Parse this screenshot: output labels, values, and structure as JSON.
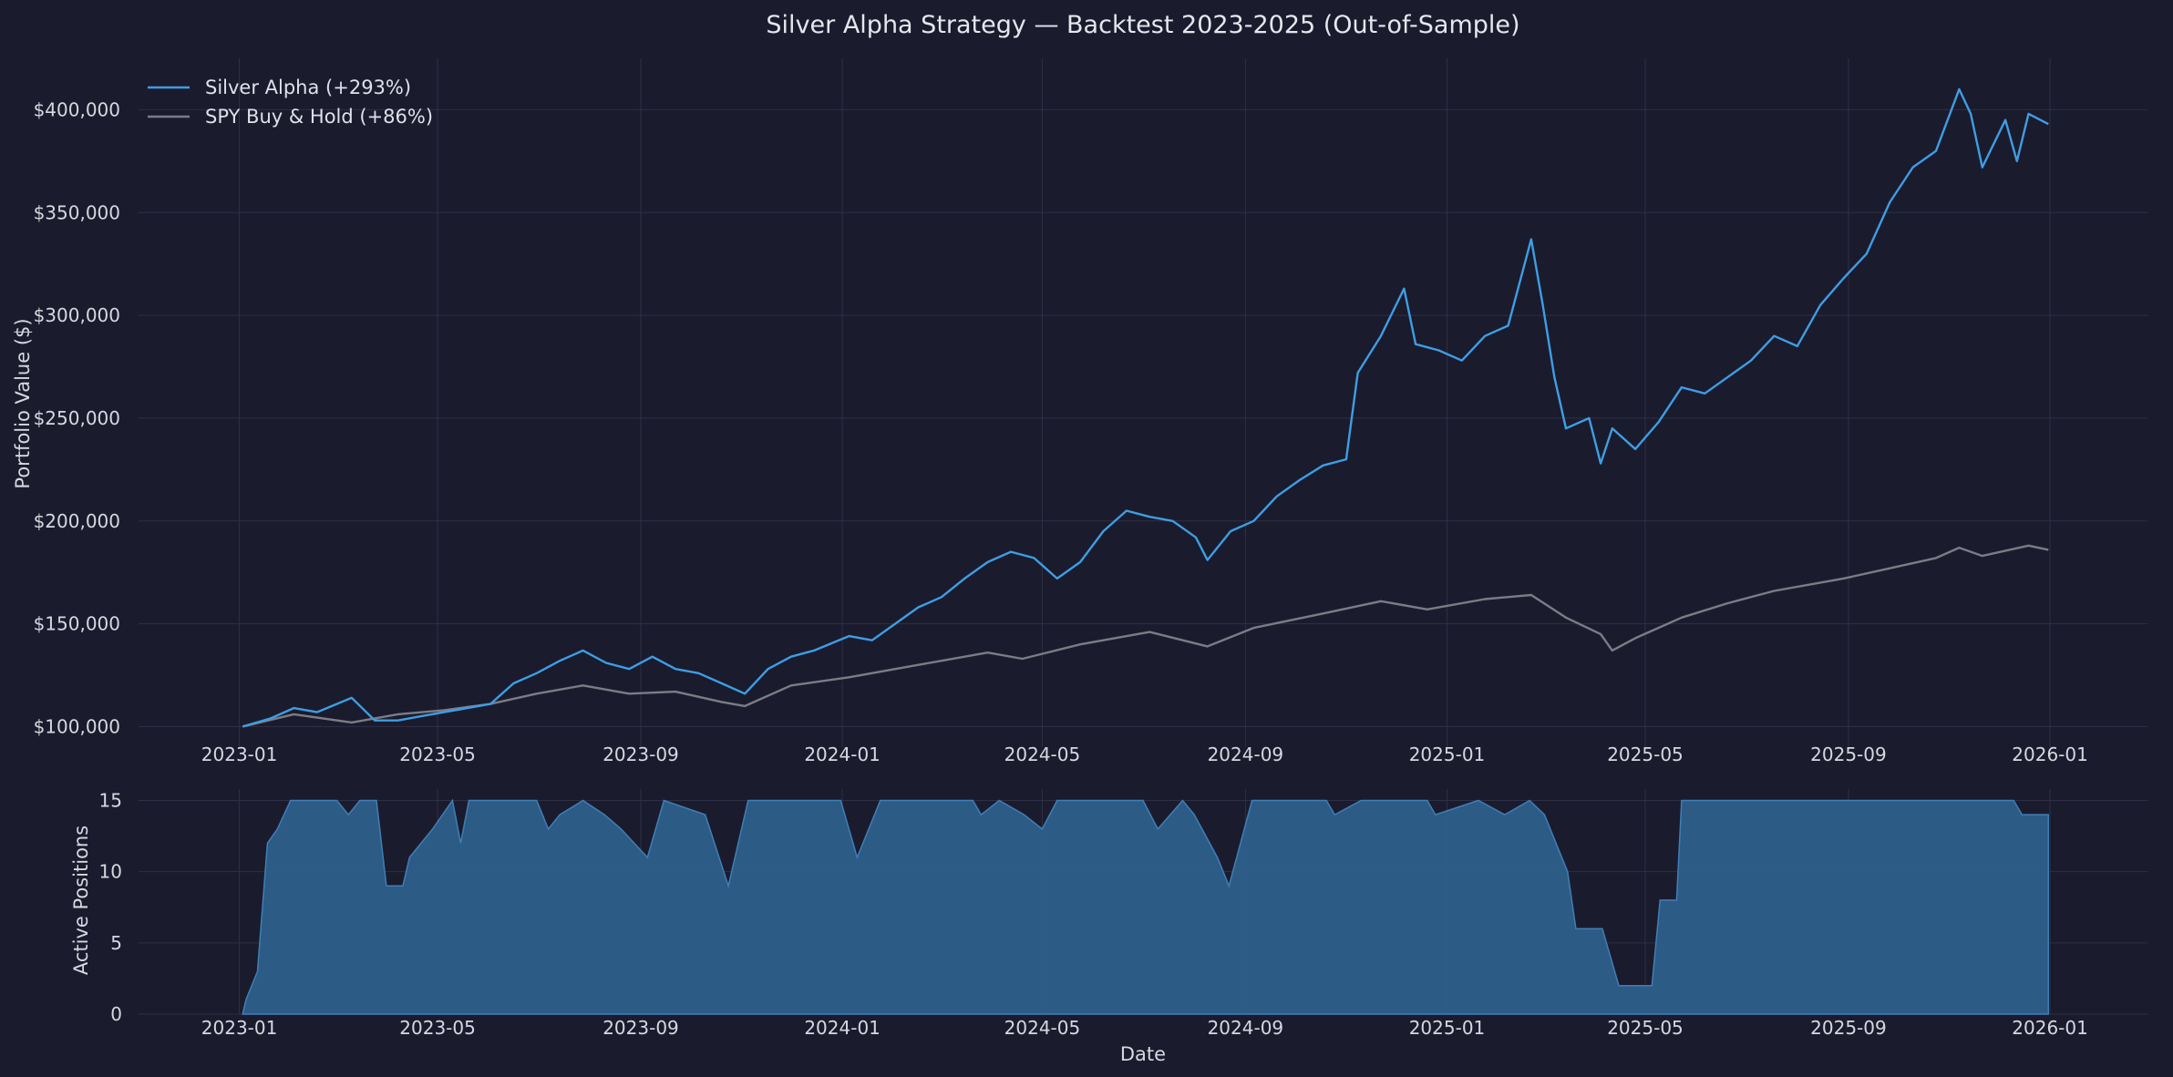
{
  "chart_data": [
    {
      "type": "line",
      "title": "Silver Alpha Strategy — Backtest 2023-2025 (Out-of-Sample)",
      "xlabel": "",
      "ylabel": "Portfolio Value ($)",
      "xlim": [
        "2022-11-01",
        "2026-03-01"
      ],
      "ylim": [
        90000,
        425000
      ],
      "x_ticks": [
        "2023-01",
        "2023-05",
        "2023-09",
        "2024-01",
        "2024-05",
        "2024-09",
        "2025-01",
        "2025-05",
        "2025-09",
        "2026-01"
      ],
      "y_ticks": [
        100000,
        150000,
        200000,
        250000,
        300000,
        350000,
        400000
      ],
      "y_tick_labels": [
        "$100,000",
        "$150,000",
        "$200,000",
        "$250,000",
        "$300,000",
        "$350,000",
        "$400,000"
      ],
      "grid": true,
      "legend_position": "top-left",
      "series": [
        {
          "name": "Silver Alpha (+293%)",
          "color": "#3d9ee3",
          "points": [
            [
              "2023-01-03",
              100000
            ],
            [
              "2023-01-20",
              104000
            ],
            [
              "2023-02-03",
              109000
            ],
            [
              "2023-02-17",
              107000
            ],
            [
              "2023-03-01",
              111000
            ],
            [
              "2023-03-10",
              114000
            ],
            [
              "2023-03-24",
              103000
            ],
            [
              "2023-04-07",
              103000
            ],
            [
              "2023-04-21",
              105000
            ],
            [
              "2023-05-05",
              107000
            ],
            [
              "2023-05-19",
              109000
            ],
            [
              "2023-06-02",
              111000
            ],
            [
              "2023-06-16",
              121000
            ],
            [
              "2023-06-30",
              126000
            ],
            [
              "2023-07-14",
              132000
            ],
            [
              "2023-07-28",
              137000
            ],
            [
              "2023-08-11",
              131000
            ],
            [
              "2023-08-25",
              128000
            ],
            [
              "2023-09-08",
              134000
            ],
            [
              "2023-09-22",
              128000
            ],
            [
              "2023-10-06",
              126000
            ],
            [
              "2023-10-20",
              121000
            ],
            [
              "2023-11-03",
              116000
            ],
            [
              "2023-11-17",
              128000
            ],
            [
              "2023-12-01",
              134000
            ],
            [
              "2023-12-15",
              137000
            ],
            [
              "2024-01-05",
              144000
            ],
            [
              "2024-01-19",
              142000
            ],
            [
              "2024-02-02",
              150000
            ],
            [
              "2024-02-16",
              158000
            ],
            [
              "2024-03-01",
              163000
            ],
            [
              "2024-03-15",
              172000
            ],
            [
              "2024-03-29",
              180000
            ],
            [
              "2024-04-12",
              185000
            ],
            [
              "2024-04-26",
              182000
            ],
            [
              "2024-05-10",
              172000
            ],
            [
              "2024-05-24",
              180000
            ],
            [
              "2024-06-07",
              195000
            ],
            [
              "2024-06-21",
              205000
            ],
            [
              "2024-07-05",
              202000
            ],
            [
              "2024-07-19",
              200000
            ],
            [
              "2024-08-02",
              192000
            ],
            [
              "2024-08-09",
              181000
            ],
            [
              "2024-08-23",
              195000
            ],
            [
              "2024-09-06",
              200000
            ],
            [
              "2024-09-20",
              212000
            ],
            [
              "2024-10-04",
              220000
            ],
            [
              "2024-10-18",
              227000
            ],
            [
              "2024-11-01",
              230000
            ],
            [
              "2024-11-08",
              272000
            ],
            [
              "2024-11-22",
              290000
            ],
            [
              "2024-12-06",
              313000
            ],
            [
              "2024-12-13",
              286000
            ],
            [
              "2024-12-27",
              283000
            ],
            [
              "2025-01-10",
              278000
            ],
            [
              "2025-01-24",
              290000
            ],
            [
              "2025-02-07",
              295000
            ],
            [
              "2025-02-21",
              337000
            ],
            [
              "2025-02-28",
              305000
            ],
            [
              "2025-03-07",
              270000
            ],
            [
              "2025-03-14",
              245000
            ],
            [
              "2025-03-28",
              250000
            ],
            [
              "2025-04-04",
              228000
            ],
            [
              "2025-04-11",
              245000
            ],
            [
              "2025-04-25",
              235000
            ],
            [
              "2025-05-09",
              248000
            ],
            [
              "2025-05-23",
              265000
            ],
            [
              "2025-06-06",
              262000
            ],
            [
              "2025-06-20",
              270000
            ],
            [
              "2025-07-04",
              278000
            ],
            [
              "2025-07-18",
              290000
            ],
            [
              "2025-08-01",
              285000
            ],
            [
              "2025-08-15",
              305000
            ],
            [
              "2025-08-29",
              318000
            ],
            [
              "2025-09-12",
              330000
            ],
            [
              "2025-09-26",
              355000
            ],
            [
              "2025-10-10",
              372000
            ],
            [
              "2025-10-24",
              380000
            ],
            [
              "2025-11-07",
              410000
            ],
            [
              "2025-11-14",
              398000
            ],
            [
              "2025-11-21",
              372000
            ],
            [
              "2025-12-05",
              395000
            ],
            [
              "2025-12-12",
              375000
            ],
            [
              "2025-12-19",
              398000
            ],
            [
              "2025-12-31",
              393000
            ]
          ]
        },
        {
          "name": "SPY Buy & Hold (+86%)",
          "color": "#7c7c85",
          "points": [
            [
              "2023-01-03",
              100000
            ],
            [
              "2023-02-03",
              106000
            ],
            [
              "2023-03-10",
              102000
            ],
            [
              "2023-04-07",
              106000
            ],
            [
              "2023-05-05",
              108000
            ],
            [
              "2023-06-02",
              111000
            ],
            [
              "2023-06-30",
              116000
            ],
            [
              "2023-07-28",
              120000
            ],
            [
              "2023-08-25",
              116000
            ],
            [
              "2023-09-22",
              117000
            ],
            [
              "2023-10-20",
              112000
            ],
            [
              "2023-11-03",
              110000
            ],
            [
              "2023-12-01",
              120000
            ],
            [
              "2024-01-05",
              124000
            ],
            [
              "2024-02-16",
              130000
            ],
            [
              "2024-03-29",
              136000
            ],
            [
              "2024-04-19",
              133000
            ],
            [
              "2024-05-24",
              140000
            ],
            [
              "2024-07-05",
              146000
            ],
            [
              "2024-08-09",
              139000
            ],
            [
              "2024-09-06",
              148000
            ],
            [
              "2024-10-18",
              155000
            ],
            [
              "2024-11-22",
              161000
            ],
            [
              "2024-12-20",
              157000
            ],
            [
              "2025-01-24",
              162000
            ],
            [
              "2025-02-21",
              164000
            ],
            [
              "2025-03-14",
              153000
            ],
            [
              "2025-04-04",
              145000
            ],
            [
              "2025-04-11",
              137000
            ],
            [
              "2025-04-25",
              143000
            ],
            [
              "2025-05-23",
              153000
            ],
            [
              "2025-06-20",
              160000
            ],
            [
              "2025-07-18",
              166000
            ],
            [
              "2025-08-29",
              172000
            ],
            [
              "2025-09-26",
              177000
            ],
            [
              "2025-10-24",
              182000
            ],
            [
              "2025-11-07",
              187000
            ],
            [
              "2025-11-21",
              183000
            ],
            [
              "2025-12-19",
              188000
            ],
            [
              "2025-12-31",
              186000
            ]
          ]
        }
      ]
    },
    {
      "type": "area",
      "title": "",
      "xlabel": "Date",
      "ylabel": "Active Positions",
      "xlim": [
        "2022-11-01",
        "2026-03-01"
      ],
      "ylim": [
        0,
        15.8
      ],
      "x_ticks": [
        "2023-01",
        "2023-05",
        "2023-09",
        "2024-01",
        "2024-05",
        "2024-09",
        "2025-01",
        "2025-05",
        "2025-09",
        "2026-01"
      ],
      "y_ticks": [
        0,
        5,
        10,
        15
      ],
      "grid": true,
      "series": [
        {
          "name": "",
          "color": "#2d5f8b",
          "points": [
            [
              "2023-01-03",
              0
            ],
            [
              "2023-01-05",
              1
            ],
            [
              "2023-01-12",
              3
            ],
            [
              "2023-01-18",
              12
            ],
            [
              "2023-01-24",
              13
            ],
            [
              "2023-02-01",
              15
            ],
            [
              "2023-03-01",
              15
            ],
            [
              "2023-03-08",
              14
            ],
            [
              "2023-03-15",
              15
            ],
            [
              "2023-03-25",
              15
            ],
            [
              "2023-03-31",
              9
            ],
            [
              "2023-04-10",
              9
            ],
            [
              "2023-04-14",
              11
            ],
            [
              "2023-04-28",
              13
            ],
            [
              "2023-05-10",
              15
            ],
            [
              "2023-05-15",
              12
            ],
            [
              "2023-05-20",
              15
            ],
            [
              "2023-06-30",
              15
            ],
            [
              "2023-07-07",
              13
            ],
            [
              "2023-07-14",
              14
            ],
            [
              "2023-07-28",
              15
            ],
            [
              "2023-08-10",
              14
            ],
            [
              "2023-08-20",
              13
            ],
            [
              "2023-09-05",
              11
            ],
            [
              "2023-09-15",
              15
            ],
            [
              "2023-10-10",
              14
            ],
            [
              "2023-10-24",
              9
            ],
            [
              "2023-11-05",
              15
            ],
            [
              "2023-12-31",
              15
            ],
            [
              "2024-01-10",
              11
            ],
            [
              "2024-01-24",
              15
            ],
            [
              "2024-03-20",
              15
            ],
            [
              "2024-03-25",
              14
            ],
            [
              "2024-04-05",
              15
            ],
            [
              "2024-04-20",
              14
            ],
            [
              "2024-05-01",
              13
            ],
            [
              "2024-05-10",
              15
            ],
            [
              "2024-07-01",
              15
            ],
            [
              "2024-07-10",
              13
            ],
            [
              "2024-07-25",
              15
            ],
            [
              "2024-08-01",
              14
            ],
            [
              "2024-08-15",
              11
            ],
            [
              "2024-08-22",
              9
            ],
            [
              "2024-09-05",
              15
            ],
            [
              "2024-10-20",
              15
            ],
            [
              "2024-10-25",
              14
            ],
            [
              "2024-11-10",
              15
            ],
            [
              "2024-12-20",
              15
            ],
            [
              "2024-12-25",
              14
            ],
            [
              "2025-01-20",
              15
            ],
            [
              "2025-02-05",
              14
            ],
            [
              "2025-02-20",
              15
            ],
            [
              "2025-03-01",
              14
            ],
            [
              "2025-03-15",
              10
            ],
            [
              "2025-03-20",
              6
            ],
            [
              "2025-04-05",
              6
            ],
            [
              "2025-04-15",
              2
            ],
            [
              "2025-05-05",
              2
            ],
            [
              "2025-05-10",
              8
            ],
            [
              "2025-05-20",
              8
            ],
            [
              "2025-05-23",
              15
            ],
            [
              "2025-12-10",
              15
            ],
            [
              "2025-12-15",
              14
            ],
            [
              "2025-12-31",
              14
            ],
            [
              "2025-12-31",
              0
            ]
          ]
        }
      ]
    }
  ]
}
